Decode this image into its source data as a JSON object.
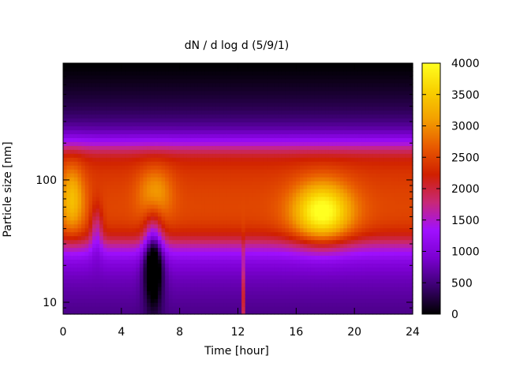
{
  "chart_data": {
    "type": "heatmap",
    "title": "dN / d log d (5/9/1)",
    "xlabel": "Time [hour]",
    "ylabel": "Particle size [nm]",
    "xlim": [
      0,
      24
    ],
    "ylim_nm": [
      8,
      900
    ],
    "y_scale": "log",
    "x_ticks": [
      "0",
      "4",
      "8",
      "12",
      "16",
      "20",
      "24"
    ],
    "x_tick_values": [
      0,
      4,
      8,
      12,
      16,
      20,
      24
    ],
    "y_ticks": [
      "10",
      "100"
    ],
    "y_tick_values": [
      10,
      100
    ],
    "colorbar": {
      "range": [
        0,
        4000
      ],
      "ticks": [
        "0",
        "500",
        "1000",
        "1500",
        "2000",
        "2500",
        "3000",
        "3500",
        "4000"
      ],
      "tick_values": [
        0,
        500,
        1000,
        1500,
        2000,
        2500,
        3000,
        3500,
        4000
      ],
      "colors": [
        "#000000",
        "#3b0070",
        "#7a00d0",
        "#a010ff",
        "#c82878",
        "#d02000",
        "#e85a00",
        "#f3a000",
        "#f8d000",
        "#ffff20"
      ]
    },
    "features": [
      {
        "description": "main band",
        "size_range_nm": [
          30,
          200
        ],
        "level": 2300
      },
      {
        "description": "peak near 18 h",
        "time_h": 17.8,
        "size_nm": 55,
        "level": 3900
      },
      {
        "description": "dip near 6.2 h",
        "time_h": 6.2,
        "size_nm": 12
      },
      {
        "description": "narrow spike at 12.3 h",
        "time_h": 12.3,
        "level": 2100
      }
    ]
  }
}
